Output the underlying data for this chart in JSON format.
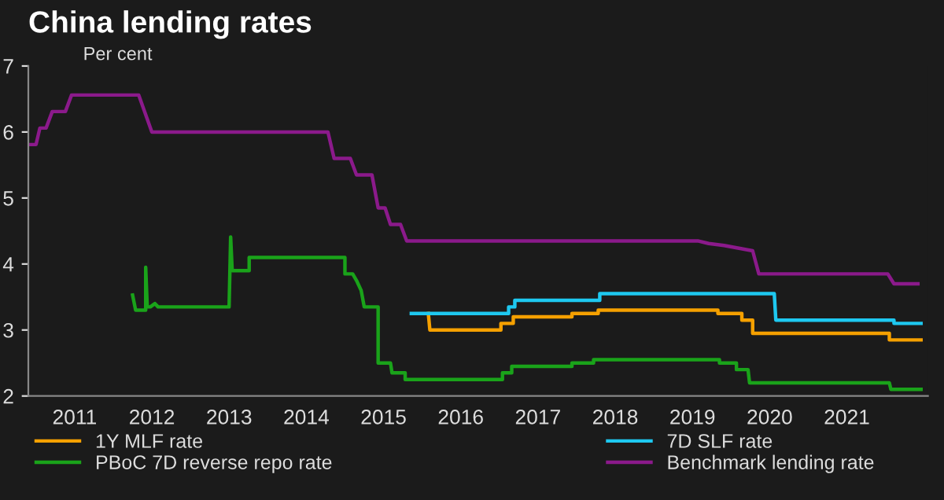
{
  "chart_data": {
    "type": "line",
    "title": "China lending rates",
    "subtitle": "Per cent",
    "xlim": [
      2010.9,
      2022.55
    ],
    "ylim": [
      2,
      7
    ],
    "yticks": [
      2,
      3,
      4,
      5,
      6,
      7
    ],
    "xticks": [
      {
        "value": 2011.5,
        "label": "2011"
      },
      {
        "value": 2012.5,
        "label": "2012"
      },
      {
        "value": 2013.5,
        "label": "2013"
      },
      {
        "value": 2014.5,
        "label": "2014"
      },
      {
        "value": 2015.5,
        "label": "2015"
      },
      {
        "value": 2016.5,
        "label": "2016"
      },
      {
        "value": 2017.5,
        "label": "2017"
      },
      {
        "value": 2018.5,
        "label": "2018"
      },
      {
        "value": 2019.5,
        "label": "2019"
      },
      {
        "value": 2020.5,
        "label": "2020"
      },
      {
        "value": 2021.5,
        "label": "2021"
      }
    ],
    "legend": "bottom",
    "grid": false,
    "series": [
      {
        "name": "1Y MLF rate",
        "color": "#f5a000",
        "x": [
          2016.08,
          2016.1,
          2017.02,
          2017.02,
          2017.18,
          2017.18,
          2017.94,
          2017.94,
          2018.28,
          2018.28,
          2019.83,
          2019.83,
          2020.14,
          2020.14,
          2020.28,
          2020.28,
          2022.05,
          2022.05,
          2022.46
        ],
        "values": [
          3.25,
          3.0,
          3.0,
          3.1,
          3.1,
          3.2,
          3.2,
          3.25,
          3.25,
          3.3,
          3.3,
          3.25,
          3.25,
          3.15,
          3.15,
          2.95,
          2.95,
          2.85,
          2.85
        ]
      },
      {
        "name": "PBoC 7D reverse repo rate",
        "color": "#1aa31a",
        "x": [
          2012.25,
          2012.29,
          2012.42,
          2012.42,
          2012.44,
          2012.48,
          2012.54,
          2012.58,
          2012.62,
          2013.5,
          2013.52,
          2013.54,
          2013.76,
          2013.76,
          2015.0,
          2015.0,
          2015.1,
          2015.15,
          2015.21,
          2015.25,
          2015.43,
          2015.43,
          2015.59,
          2015.61,
          2015.78,
          2015.78,
          2017.04,
          2017.04,
          2017.16,
          2017.16,
          2017.94,
          2017.94,
          2018.22,
          2018.22,
          2019.85,
          2019.85,
          2020.07,
          2020.07,
          2020.22,
          2020.24,
          2022.05,
          2022.07,
          2022.46
        ],
        "values": [
          3.53,
          3.3,
          3.3,
          3.95,
          3.35,
          3.35,
          3.4,
          3.35,
          3.35,
          3.35,
          4.41,
          3.9,
          3.9,
          4.1,
          4.1,
          3.85,
          3.85,
          3.75,
          3.6,
          3.35,
          3.35,
          2.5,
          2.5,
          2.35,
          2.35,
          2.25,
          2.25,
          2.35,
          2.35,
          2.45,
          2.45,
          2.5,
          2.5,
          2.55,
          2.55,
          2.5,
          2.5,
          2.4,
          2.4,
          2.2,
          2.2,
          2.1,
          2.1
        ]
      },
      {
        "name": "7D SLF rate",
        "color": "#1ec8f0",
        "x": [
          2015.86,
          2017.12,
          2017.12,
          2017.2,
          2017.2,
          2018.3,
          2018.3,
          2020.56,
          2020.58,
          2022.11,
          2022.11,
          2022.46
        ],
        "values": [
          3.25,
          3.25,
          3.35,
          3.35,
          3.45,
          3.45,
          3.55,
          3.55,
          3.15,
          3.15,
          3.1,
          3.1
        ]
      },
      {
        "name": "Benchmark lending rate",
        "color": "#8b1a8b",
        "x": [
          2010.91,
          2011.0,
          2011.05,
          2011.13,
          2011.21,
          2011.38,
          2011.46,
          2012.33,
          2012.5,
          2014.78,
          2014.86,
          2015.07,
          2015.15,
          2015.35,
          2015.43,
          2015.52,
          2015.59,
          2015.72,
          2015.8,
          2019.57,
          2019.71,
          2019.91,
          2020.28,
          2020.36,
          2022.03,
          2022.11,
          2022.42
        ],
        "values": [
          5.81,
          5.81,
          6.06,
          6.06,
          6.31,
          6.31,
          6.56,
          6.56,
          6.0,
          6.0,
          5.6,
          5.6,
          5.35,
          5.35,
          4.85,
          4.85,
          4.6,
          4.6,
          4.35,
          4.35,
          4.31,
          4.28,
          4.2,
          3.85,
          3.85,
          3.7,
          3.7
        ]
      }
    ]
  }
}
